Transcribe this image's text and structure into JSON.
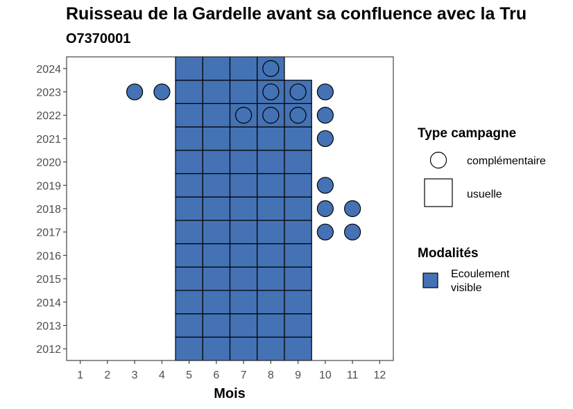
{
  "chart_data": {
    "type": "tile",
    "title": "Ruisseau de la Gardelle avant sa confluence avec la Tru",
    "subtitle": "O7370001",
    "xlabel": "Mois",
    "ylabel": "",
    "x_ticks": [
      1,
      2,
      3,
      4,
      5,
      6,
      7,
      8,
      9,
      10,
      11,
      12
    ],
    "y_ticks": [
      2012,
      2013,
      2014,
      2015,
      2016,
      2017,
      2018,
      2019,
      2020,
      2021,
      2022,
      2023,
      2024
    ],
    "xlim": [
      0.5,
      12.5
    ],
    "ylim": [
      2011.5,
      2024.5
    ],
    "fill_color": "#4472b4",
    "legend": {
      "shape_title": "Type campagne",
      "shape_entries": [
        "complémentaire",
        "usuelle"
      ],
      "fill_title": "Modalités",
      "fill_entries": [
        "Ecoulement visible"
      ]
    },
    "usuelle": [
      {
        "year": 2012,
        "months": [
          5,
          6,
          7,
          8,
          9
        ]
      },
      {
        "year": 2013,
        "months": [
          5,
          6,
          7,
          8,
          9
        ]
      },
      {
        "year": 2014,
        "months": [
          5,
          6,
          7,
          8,
          9
        ]
      },
      {
        "year": 2015,
        "months": [
          5,
          6,
          7,
          8,
          9
        ]
      },
      {
        "year": 2016,
        "months": [
          5,
          6,
          7,
          8,
          9
        ]
      },
      {
        "year": 2017,
        "months": [
          5,
          6,
          7,
          8,
          9
        ]
      },
      {
        "year": 2018,
        "months": [
          5,
          6,
          7,
          8,
          9
        ]
      },
      {
        "year": 2019,
        "months": [
          5,
          6,
          7,
          8,
          9
        ]
      },
      {
        "year": 2020,
        "months": [
          5,
          6,
          7,
          8,
          9
        ]
      },
      {
        "year": 2021,
        "months": [
          5,
          6,
          7,
          8,
          9
        ]
      },
      {
        "year": 2022,
        "months": [
          5,
          6,
          7,
          8,
          9
        ]
      },
      {
        "year": 2023,
        "months": [
          5,
          6,
          7,
          8,
          9
        ]
      },
      {
        "year": 2024,
        "months": [
          5,
          6,
          7,
          8
        ]
      }
    ],
    "complementaire": [
      {
        "year": 2024,
        "month": 8,
        "filled": false
      },
      {
        "year": 2023,
        "month": 3,
        "filled": true
      },
      {
        "year": 2023,
        "month": 4,
        "filled": true
      },
      {
        "year": 2023,
        "month": 8,
        "filled": false
      },
      {
        "year": 2023,
        "month": 9,
        "filled": false
      },
      {
        "year": 2023,
        "month": 10,
        "filled": true
      },
      {
        "year": 2022,
        "month": 7,
        "filled": false
      },
      {
        "year": 2022,
        "month": 8,
        "filled": false
      },
      {
        "year": 2022,
        "month": 9,
        "filled": false
      },
      {
        "year": 2022,
        "month": 10,
        "filled": true
      },
      {
        "year": 2021,
        "month": 10,
        "filled": true
      },
      {
        "year": 2019,
        "month": 10,
        "filled": true
      },
      {
        "year": 2018,
        "month": 10,
        "filled": true
      },
      {
        "year": 2018,
        "month": 11,
        "filled": true
      },
      {
        "year": 2017,
        "month": 10,
        "filled": true
      },
      {
        "year": 2017,
        "month": 11,
        "filled": true
      }
    ]
  }
}
